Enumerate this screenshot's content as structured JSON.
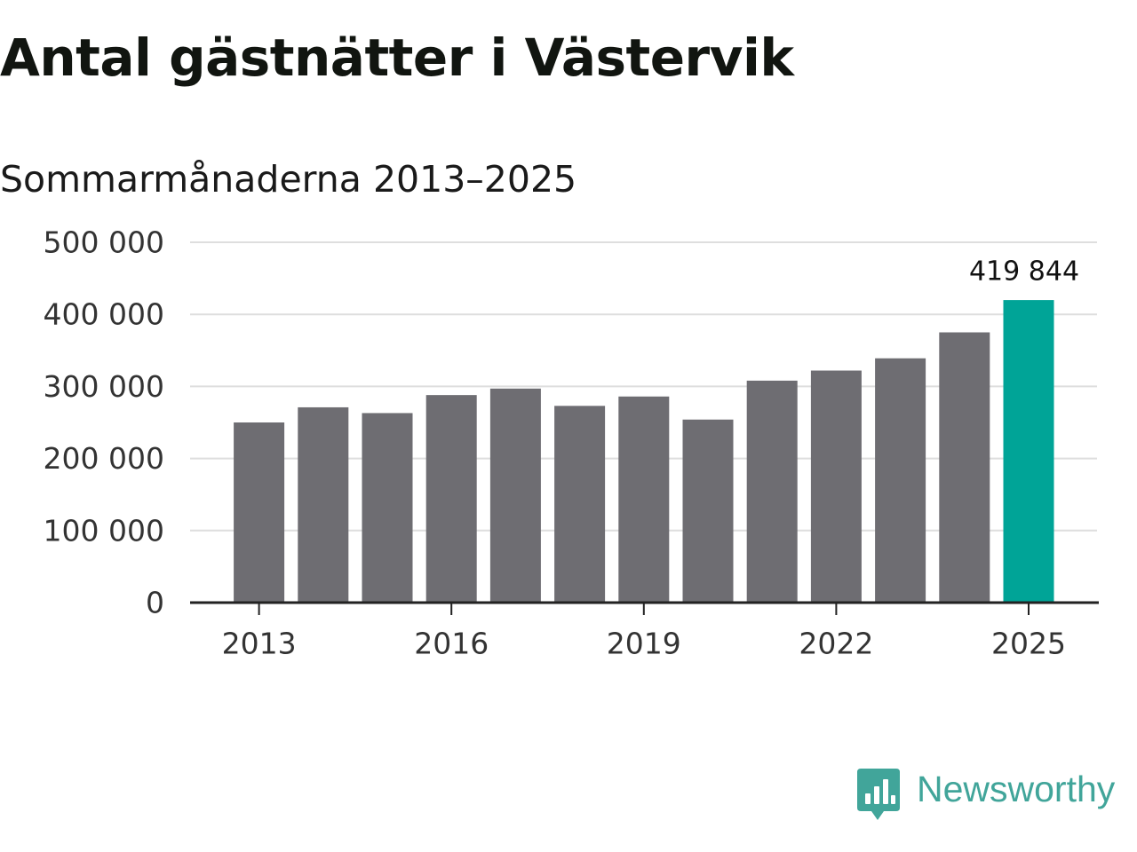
{
  "title": "Antal gästnätter i Västervik",
  "subtitle": "Sommarmånaderna 2013–2025",
  "logo": {
    "text": "Newsworthy",
    "icon": "newsworthy-logo-icon",
    "color": "#41a59a"
  },
  "colors": {
    "bar": "#6e6d72",
    "highlight": "#00a497",
    "grid": "#dedede",
    "axis": "#222222",
    "text": "#222222"
  },
  "chart_data": {
    "type": "bar",
    "categories": [
      "2013",
      "2014",
      "2015",
      "2016",
      "2017",
      "2018",
      "2019",
      "2020",
      "2021",
      "2022",
      "2023",
      "2024",
      "2025"
    ],
    "values": [
      250000,
      271000,
      263000,
      288000,
      297000,
      273000,
      286000,
      254000,
      308000,
      322000,
      339000,
      375000,
      419844
    ],
    "highlight_index": 12,
    "data_labels": [
      {
        "index": 12,
        "text": "419 844"
      }
    ],
    "x_tick_labels": [
      "2013",
      "2016",
      "2019",
      "2022",
      "2025"
    ],
    "y_tick_values": [
      0,
      100000,
      200000,
      300000,
      400000,
      500000
    ],
    "y_tick_labels": [
      "0",
      "100 000",
      "200 000",
      "300 000",
      "400 000",
      "500 000"
    ],
    "ylim": [
      0,
      500000
    ],
    "grid": true,
    "legend": "none"
  }
}
